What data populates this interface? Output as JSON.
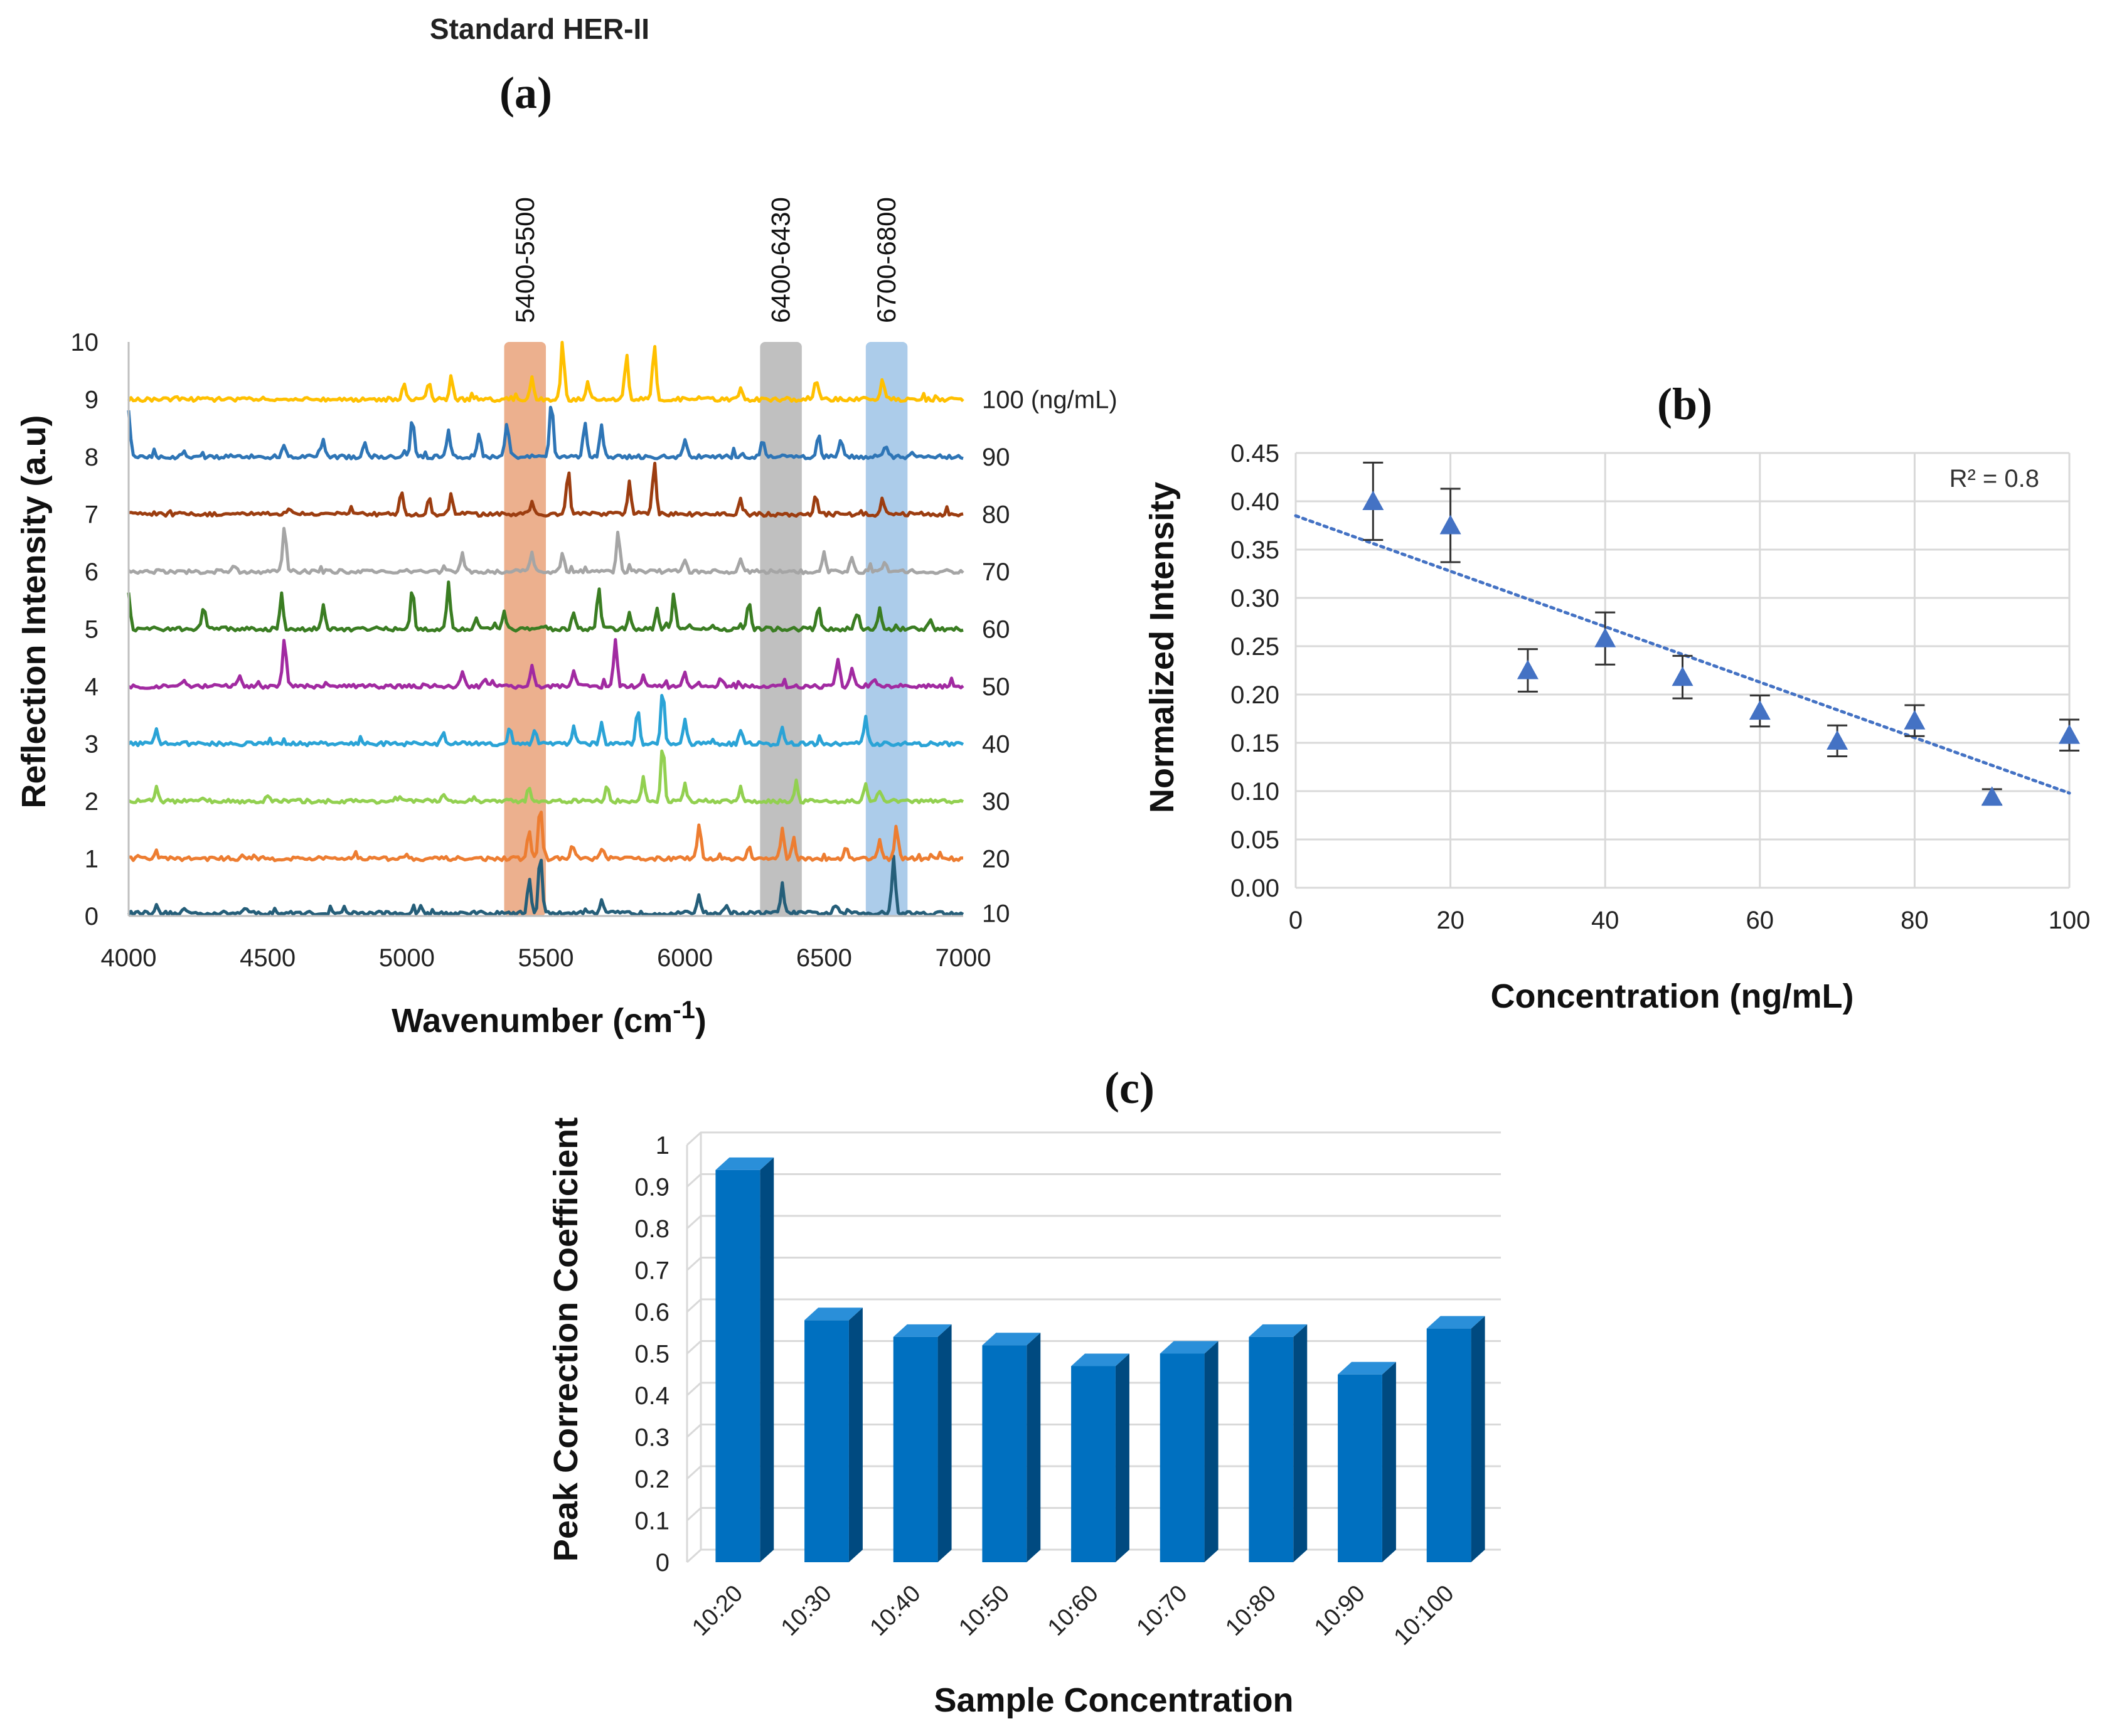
{
  "figure": {
    "title": "Standard HER-II"
  },
  "chart_data": [
    {
      "id": "a",
      "panel_label": "(a)",
      "type": "line",
      "xlabel": "Wavenumber (cm",
      "xlabel_sup": "-1",
      "xlabel_end": ")",
      "ylabel": "Reflection Intensity (a.u)",
      "xlim": [
        4000,
        7000
      ],
      "ylim": [
        0,
        10
      ],
      "xticks": [
        4000,
        4500,
        5000,
        5500,
        6000,
        6500,
        7000
      ],
      "yticks": [
        0,
        1,
        2,
        3,
        4,
        5,
        6,
        7,
        8,
        9,
        10
      ],
      "bands": [
        {
          "range": [
            5350,
            5500
          ],
          "label": "5400-5500",
          "color": "#e9a27a"
        },
        {
          "range": [
            6270,
            6420
          ],
          "label": "6400-6430",
          "color": "#b5b5b5"
        },
        {
          "range": [
            6650,
            6800
          ],
          "label": "6700-6800",
          "color": "#9dc3e6"
        }
      ],
      "series": [
        {
          "name": "10",
          "label": "10",
          "baseline": 0.05,
          "color": "#255e79",
          "peaks": [
            [
              4100,
              0.12
            ],
            [
              4200,
              0.08
            ],
            [
              4420,
              0.08
            ],
            [
              5050,
              0.1
            ],
            [
              5440,
              0.6
            ],
            [
              5480,
              1.05
            ],
            [
              5700,
              0.2
            ],
            [
              6050,
              0.35
            ],
            [
              6150,
              0.15
            ],
            [
              6350,
              0.5
            ],
            [
              6540,
              0.12
            ],
            [
              6750,
              1.0
            ]
          ]
        },
        {
          "name": "20",
          "label": "20",
          "baseline": 1.0,
          "color": "#ed7d31",
          "peaks": [
            [
              4100,
              0.1
            ],
            [
              4450,
              0.06
            ],
            [
              5000,
              0.1
            ],
            [
              5440,
              0.5
            ],
            [
              5480,
              0.95
            ],
            [
              5600,
              0.2
            ],
            [
              5700,
              0.15
            ],
            [
              6050,
              0.55
            ],
            [
              6230,
              0.2
            ],
            [
              6350,
              0.5
            ],
            [
              6390,
              0.35
            ],
            [
              6580,
              0.2
            ],
            [
              6700,
              0.35
            ],
            [
              6760,
              0.55
            ]
          ]
        },
        {
          "name": "30",
          "label": "30",
          "baseline": 2.0,
          "color": "#92d050",
          "peaks": [
            [
              4100,
              0.22
            ],
            [
              4500,
              0.08
            ],
            [
              5130,
              0.15
            ],
            [
              5440,
              0.25
            ],
            [
              5720,
              0.3
            ],
            [
              5850,
              0.4
            ],
            [
              5920,
              1.0
            ],
            [
              6000,
              0.3
            ],
            [
              6200,
              0.25
            ],
            [
              6400,
              0.35
            ],
            [
              6650,
              0.3
            ],
            [
              6700,
              0.2
            ]
          ]
        },
        {
          "name": "40",
          "label": "40",
          "baseline": 3.0,
          "color": "#2aa3d6",
          "peaks": [
            [
              4100,
              0.25
            ],
            [
              4200,
              0.06
            ],
            [
              5130,
              0.2
            ],
            [
              5370,
              0.3
            ],
            [
              5460,
              0.25
            ],
            [
              5600,
              0.3
            ],
            [
              5700,
              0.4
            ],
            [
              5830,
              0.6
            ],
            [
              5920,
              0.95
            ],
            [
              6000,
              0.4
            ],
            [
              6200,
              0.25
            ],
            [
              6350,
              0.3
            ],
            [
              6650,
              0.45
            ]
          ]
        },
        {
          "name": "50",
          "label": "50",
          "baseline": 4.0,
          "color": "#a12aa1",
          "peaks": [
            [
              4200,
              0.1
            ],
            [
              4400,
              0.2
            ],
            [
              4560,
              0.85
            ],
            [
              5200,
              0.25
            ],
            [
              5280,
              0.15
            ],
            [
              5450,
              0.4
            ],
            [
              5600,
              0.3
            ],
            [
              5750,
              0.8
            ],
            [
              5850,
              0.2
            ],
            [
              6000,
              0.25
            ],
            [
              6130,
              0.15
            ],
            [
              6550,
              0.5
            ],
            [
              6600,
              0.35
            ],
            [
              6680,
              0.1
            ]
          ]
        },
        {
          "name": "60",
          "label": "60",
          "baseline": 5.0,
          "color": "#3a7d22",
          "peaks": [
            [
              4000,
              0.6
            ],
            [
              4270,
              0.3
            ],
            [
              4550,
              0.6
            ],
            [
              4700,
              0.4
            ],
            [
              5020,
              0.7
            ],
            [
              5150,
              0.8
            ],
            [
              5250,
              0.2
            ],
            [
              5350,
              0.3
            ],
            [
              5600,
              0.3
            ],
            [
              5690,
              0.75
            ],
            [
              5800,
              0.3
            ],
            [
              5900,
              0.35
            ],
            [
              5960,
              0.6
            ],
            [
              6230,
              0.45
            ],
            [
              6480,
              0.4
            ],
            [
              6620,
              0.3
            ],
            [
              6700,
              0.35
            ],
            [
              6880,
              0.15
            ]
          ]
        },
        {
          "name": "70",
          "label": "70",
          "baseline": 6.0,
          "color": "#a5a5a5",
          "peaks": [
            [
              4380,
              0.1
            ],
            [
              4560,
              0.8
            ],
            [
              5200,
              0.3
            ],
            [
              5450,
              0.35
            ],
            [
              5560,
              0.3
            ],
            [
              5760,
              0.7
            ],
            [
              6000,
              0.2
            ],
            [
              6200,
              0.2
            ],
            [
              6500,
              0.35
            ],
            [
              6600,
              0.25
            ],
            [
              6720,
              0.15
            ]
          ]
        },
        {
          "name": "80",
          "label": "80",
          "baseline": 7.0,
          "color": "#9c3d10",
          "peaks": [
            [
              4580,
              0.1
            ],
            [
              4800,
              0.1
            ],
            [
              4980,
              0.4
            ],
            [
              5080,
              0.3
            ],
            [
              5160,
              0.35
            ],
            [
              5450,
              0.25
            ],
            [
              5580,
              0.75
            ],
            [
              5800,
              0.55
            ],
            [
              5890,
              0.95
            ],
            [
              6200,
              0.25
            ],
            [
              6470,
              0.35
            ],
            [
              6710,
              0.3
            ]
          ]
        },
        {
          "name": "90",
          "label": "90",
          "baseline": 8.0,
          "color": "#2e75b6",
          "peaks": [
            [
              4000,
              0.8
            ],
            [
              4200,
              0.1
            ],
            [
              4560,
              0.2
            ],
            [
              4700,
              0.3
            ],
            [
              4850,
              0.25
            ],
            [
              5020,
              0.7
            ],
            [
              5150,
              0.5
            ],
            [
              5260,
              0.4
            ],
            [
              5360,
              0.6
            ],
            [
              5520,
              1.0
            ],
            [
              5640,
              0.6
            ],
            [
              5700,
              0.55
            ],
            [
              6000,
              0.3
            ],
            [
              6280,
              0.3
            ],
            [
              6480,
              0.4
            ],
            [
              6560,
              0.3
            ],
            [
              6720,
              0.2
            ]
          ]
        },
        {
          "name": "100",
          "label": "100 (ng/mL)",
          "baseline": 9.0,
          "color": "#ffc000",
          "peaks": [
            [
              4170,
              0.08
            ],
            [
              4990,
              0.25
            ],
            [
              5080,
              0.3
            ],
            [
              5160,
              0.4
            ],
            [
              5450,
              0.4
            ],
            [
              5560,
              1.0
            ],
            [
              5650,
              0.3
            ],
            [
              5790,
              0.8
            ],
            [
              5890,
              0.95
            ],
            [
              6200,
              0.2
            ],
            [
              6470,
              0.35
            ],
            [
              6710,
              0.35
            ]
          ]
        }
      ]
    },
    {
      "id": "b",
      "panel_label": "(b)",
      "type": "scatter",
      "xlabel": "Concentration (ng/mL)",
      "ylabel": "Normalized Intensity",
      "xlim": [
        0,
        100
      ],
      "ylim": [
        0,
        0.45
      ],
      "xticks": [
        0,
        20,
        40,
        60,
        80,
        100
      ],
      "yticks": [
        0.0,
        0.05,
        0.1,
        0.15,
        0.2,
        0.25,
        0.3,
        0.35,
        0.4,
        0.45
      ],
      "ytick_labels": [
        "0.00",
        "0.05",
        "0.10",
        "0.15",
        "0.20",
        "0.25",
        "0.30",
        "0.35",
        "0.40",
        "0.45"
      ],
      "x": [
        10,
        20,
        30,
        40,
        50,
        60,
        70,
        80,
        90,
        100
      ],
      "y": [
        0.4,
        0.375,
        0.225,
        0.258,
        0.218,
        0.183,
        0.152,
        0.173,
        0.094,
        0.158
      ],
      "err": [
        0.04,
        0.038,
        0.022,
        0.027,
        0.022,
        0.016,
        0.016,
        0.016,
        0.008,
        0.016
      ],
      "trendline": {
        "x": [
          0,
          100
        ],
        "y": [
          0.385,
          0.098
        ],
        "style": "dotted"
      },
      "annotation": "R² = 0.8",
      "color": "#4472c4"
    },
    {
      "id": "c",
      "panel_label": "(c)",
      "type": "bar",
      "xlabel": "Sample Concentration",
      "ylabel": "Peak Correction Coefficient",
      "ylim": [
        0,
        1
      ],
      "yticks": [
        0,
        0.1,
        0.2,
        0.3,
        0.4,
        0.5,
        0.6,
        0.7,
        0.8,
        0.9,
        1
      ],
      "ytick_labels": [
        "0",
        "0.1",
        "0.2",
        "0.3",
        "0.4",
        "0.5",
        "0.6",
        "0.7",
        "0.8",
        "0.9",
        "1"
      ],
      "categories": [
        "10:20",
        "10:30",
        "10:40",
        "10:50",
        "10:60",
        "10:70",
        "10:80",
        "10:90",
        "10:100"
      ],
      "values": [
        0.94,
        0.58,
        0.54,
        0.52,
        0.47,
        0.5,
        0.54,
        0.45,
        0.56
      ],
      "color": "#0070c0"
    }
  ]
}
